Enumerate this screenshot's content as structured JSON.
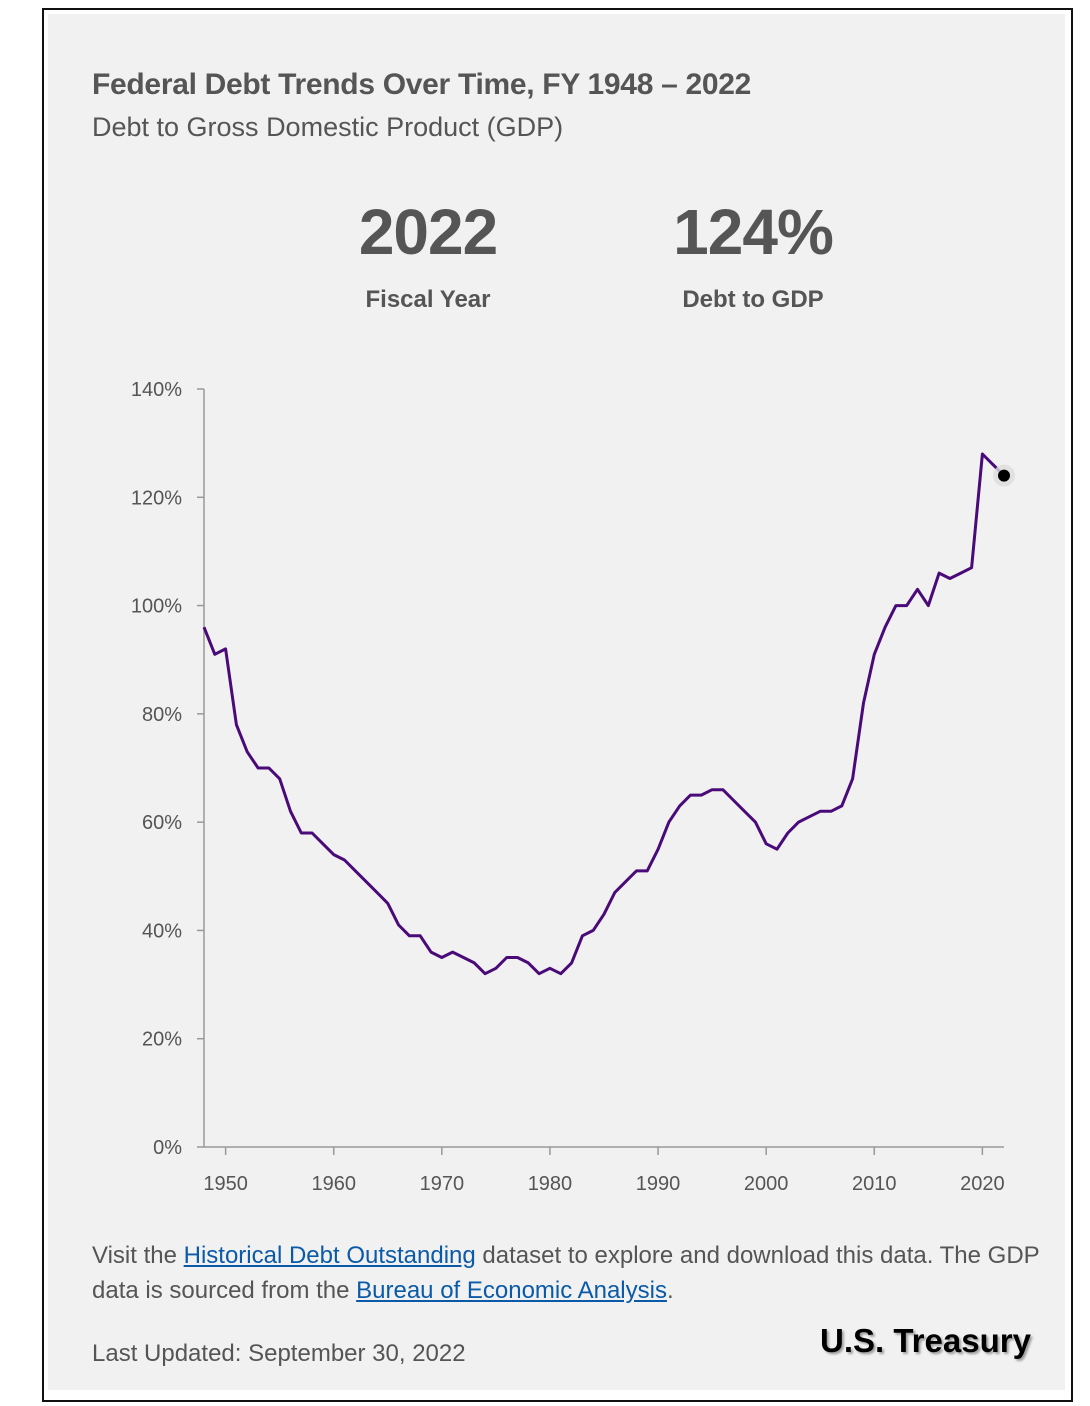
{
  "header": {
    "title": "Federal Debt Trends Over Time, FY 1948 – 2022",
    "subtitle": "Debt to Gross Domestic Product (GDP)"
  },
  "stats": {
    "year_value": "2022",
    "year_label": "Fiscal Year",
    "debt_value": "124%",
    "debt_label": "Debt to GDP"
  },
  "footer": {
    "text_1": "Visit the ",
    "link_1": "Historical Debt Outstanding",
    "text_2": " dataset to explore and download this data. The GDP data is sourced from the ",
    "link_2": "Bureau of Economic Analysis",
    "text_3": ".",
    "updated": "Last Updated: September 30, 2022",
    "brand": "U.S. Treasury"
  },
  "colors": {
    "line": "#4a0a78",
    "marker": "#000000",
    "axis": "#999999",
    "text": "#555555",
    "link": "#0a5aa8"
  },
  "chart_data": {
    "type": "line",
    "title": "Federal Debt Trends Over Time, FY 1948 – 2022",
    "subtitle": "Debt to Gross Domestic Product (GDP)",
    "xlabel": "",
    "ylabel": "",
    "xlim": [
      1948,
      2022
    ],
    "ylim": [
      0,
      140
    ],
    "x_ticks": [
      1950,
      1960,
      1970,
      1980,
      1990,
      2000,
      2010,
      2020
    ],
    "y_ticks": [
      0,
      20,
      40,
      60,
      80,
      100,
      120,
      140
    ],
    "y_tick_suffix": "%",
    "grid": false,
    "legend": "none",
    "highlight": {
      "x": 2022,
      "y": 124
    },
    "series": [
      {
        "x": [
          1948,
          1949,
          1950,
          1951,
          1952,
          1953,
          1954,
          1955,
          1956,
          1957,
          1958,
          1959,
          1960,
          1961,
          1962,
          1963,
          1964,
          1965,
          1966,
          1967,
          1968,
          1969,
          1970,
          1971,
          1972,
          1973,
          1974,
          1975,
          1976,
          1977,
          1978,
          1979,
          1980,
          1981,
          1982,
          1983,
          1984,
          1985,
          1986,
          1987,
          1988,
          1989,
          1990,
          1991,
          1992,
          1993,
          1994,
          1995,
          1996,
          1997,
          1998,
          1999,
          2000,
          2001,
          2002,
          2003,
          2004,
          2005,
          2006,
          2007,
          2008,
          2009,
          2010,
          2011,
          2012,
          2013,
          2014,
          2015,
          2016,
          2017,
          2018,
          2019,
          2020,
          2021,
          2022
        ],
        "values": [
          96,
          91,
          92,
          78,
          73,
          70,
          70,
          68,
          62,
          58,
          58,
          56,
          54,
          53,
          51,
          49,
          47,
          45,
          41,
          39,
          39,
          36,
          35,
          36,
          35,
          34,
          32,
          33,
          35,
          35,
          34,
          32,
          33,
          32,
          34,
          39,
          40,
          43,
          47,
          49,
          51,
          51,
          55,
          60,
          63,
          65,
          65,
          66,
          66,
          64,
          62,
          60,
          56,
          55,
          58,
          60,
          61,
          62,
          62,
          63,
          68,
          82,
          91,
          96,
          100,
          100,
          103,
          100,
          106,
          105,
          106,
          107,
          128,
          126,
          124
        ]
      }
    ]
  }
}
